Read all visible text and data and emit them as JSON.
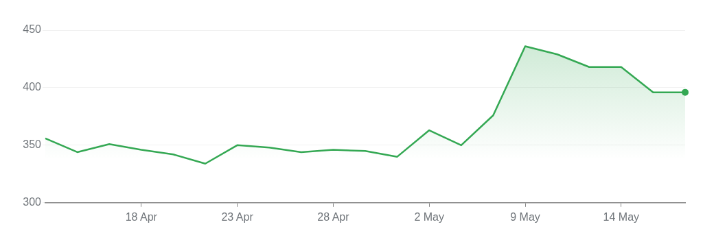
{
  "chart_data": {
    "type": "area",
    "categories": [
      null,
      null,
      null,
      "18 Apr",
      null,
      null,
      "23 Apr",
      null,
      null,
      "28 Apr",
      null,
      null,
      "2 May",
      null,
      null,
      "9 May",
      null,
      null,
      "14 May",
      null,
      null
    ],
    "series": [
      {
        "color": "#34a853",
        "values": [
          356,
          344,
          351,
          346,
          342,
          334,
          350,
          348,
          344,
          346,
          345,
          340,
          363,
          350,
          376,
          436,
          429,
          418,
          418,
          396,
          396
        ]
      }
    ],
    "ylim": [
      300,
      450
    ],
    "yticks": [
      300,
      350,
      400,
      450
    ],
    "grid": "y",
    "legend": false,
    "marker": "none"
  }
}
